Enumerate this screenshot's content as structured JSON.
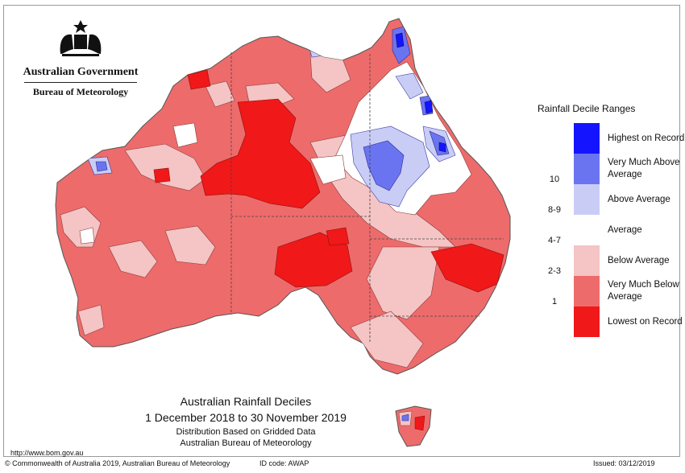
{
  "header": {
    "gov_name": "Australian Government",
    "agency": "Bureau of Meteorology"
  },
  "legend": {
    "title": "Rainfall Decile Ranges",
    "items": [
      {
        "range": "",
        "label": "Highest on Record",
        "color": "#1414ff"
      },
      {
        "range": "10",
        "label": "Very Much Above Average",
        "color": "#6b74f0"
      },
      {
        "range": "8-9",
        "label": "Above Average",
        "color": "#c9cdf6"
      },
      {
        "range": "4-7",
        "label": "Average",
        "color": "#ffffff"
      },
      {
        "range": "2-3",
        "label": "Below Average",
        "color": "#f5c4c4"
      },
      {
        "range": "1",
        "label": "Very Much Below Average",
        "color": "#ee6b6b"
      },
      {
        "range": "",
        "label": "Lowest on Record",
        "color": "#f01818"
      }
    ]
  },
  "map_title": {
    "line1": "Australian Rainfall Deciles",
    "line2": "1 December 2018 to 30 November 2019",
    "line3": "Distribution Based on Gridded Data",
    "line4": "Australian Bureau of Meteorology"
  },
  "footer": {
    "url": "http://www.bom.gov.au",
    "copyright": "© Commonwealth of Australia 2019, Australian Bureau of Meteorology",
    "id_code": "ID code: AWAP",
    "issued": "Issued: 03/12/2019"
  }
}
